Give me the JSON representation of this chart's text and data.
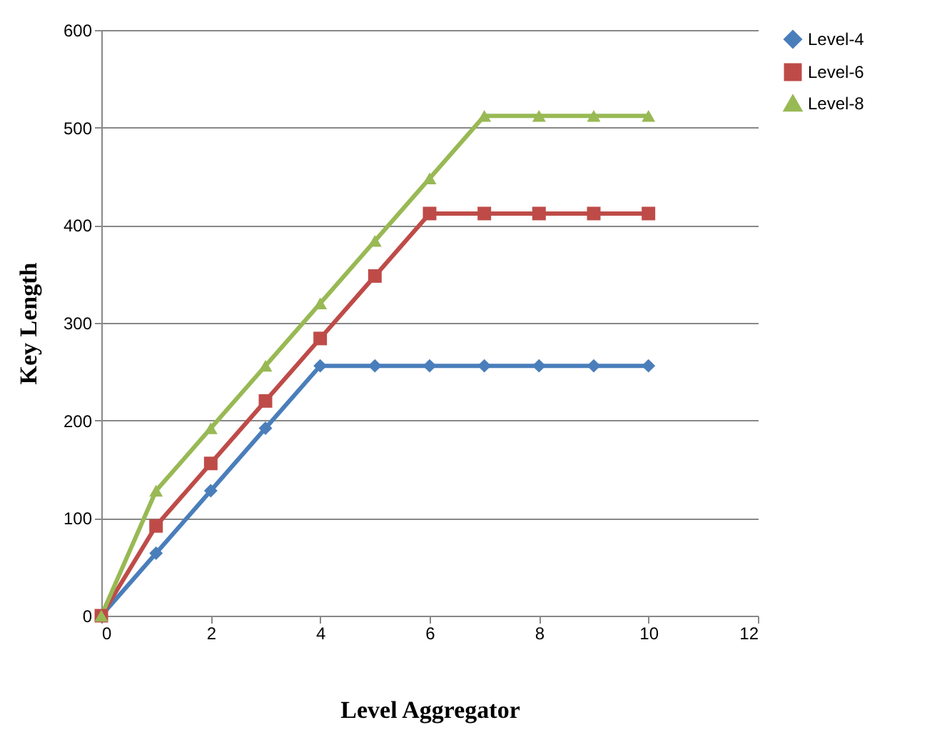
{
  "chart_data": {
    "type": "line",
    "xlabel": "Level Aggregator",
    "ylabel": "Key Length",
    "x": [
      0,
      1,
      2,
      3,
      4,
      5,
      6,
      7,
      8,
      9,
      10
    ],
    "xlim": [
      0,
      12
    ],
    "xticks": [
      0,
      2,
      4,
      6,
      8,
      10,
      12
    ],
    "ylim": [
      0,
      600
    ],
    "yticks": [
      0,
      100,
      200,
      300,
      400,
      500,
      600
    ],
    "grid": "y",
    "legend": "right",
    "line_style": "solid",
    "series": [
      {
        "name": "Level-4",
        "color": "#4a7ebb",
        "marker": "diamond",
        "values": [
          0,
          64,
          128,
          192,
          256,
          256,
          256,
          256,
          256,
          256,
          256
        ]
      },
      {
        "name": "Level-6",
        "color": "#be4b48",
        "marker": "square",
        "values": [
          0,
          92,
          156,
          220,
          284,
          348,
          412,
          412,
          412,
          412,
          412
        ]
      },
      {
        "name": "Level-8",
        "color": "#98b954",
        "marker": "triangle",
        "values": [
          0,
          128,
          192,
          256,
          320,
          384,
          448,
          512,
          512,
          512,
          512
        ]
      }
    ]
  }
}
